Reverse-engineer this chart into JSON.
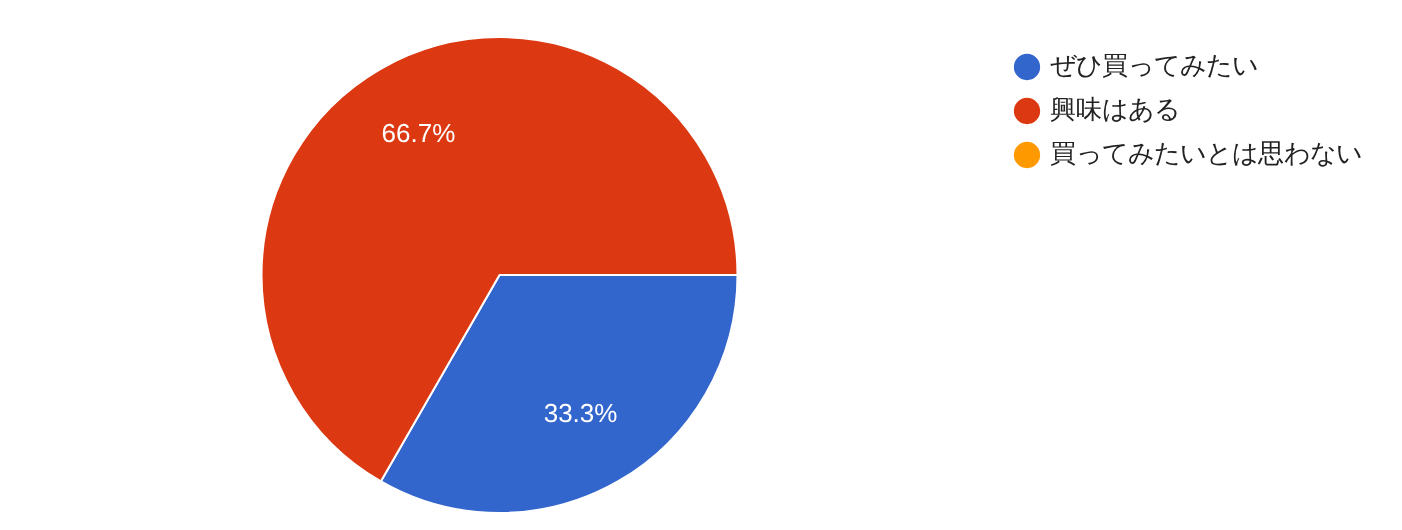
{
  "chart_data": {
    "type": "pie",
    "categories": [
      "ぜひ買ってみたい",
      "興味はある",
      "買ってみたいとは思わない"
    ],
    "values": [
      33.3,
      66.7,
      0
    ],
    "colors": [
      "#3366cc",
      "#dc3912",
      "#ff9900"
    ],
    "value_labels": [
      "33.3%",
      "66.7%",
      null
    ],
    "legend": "top right"
  }
}
